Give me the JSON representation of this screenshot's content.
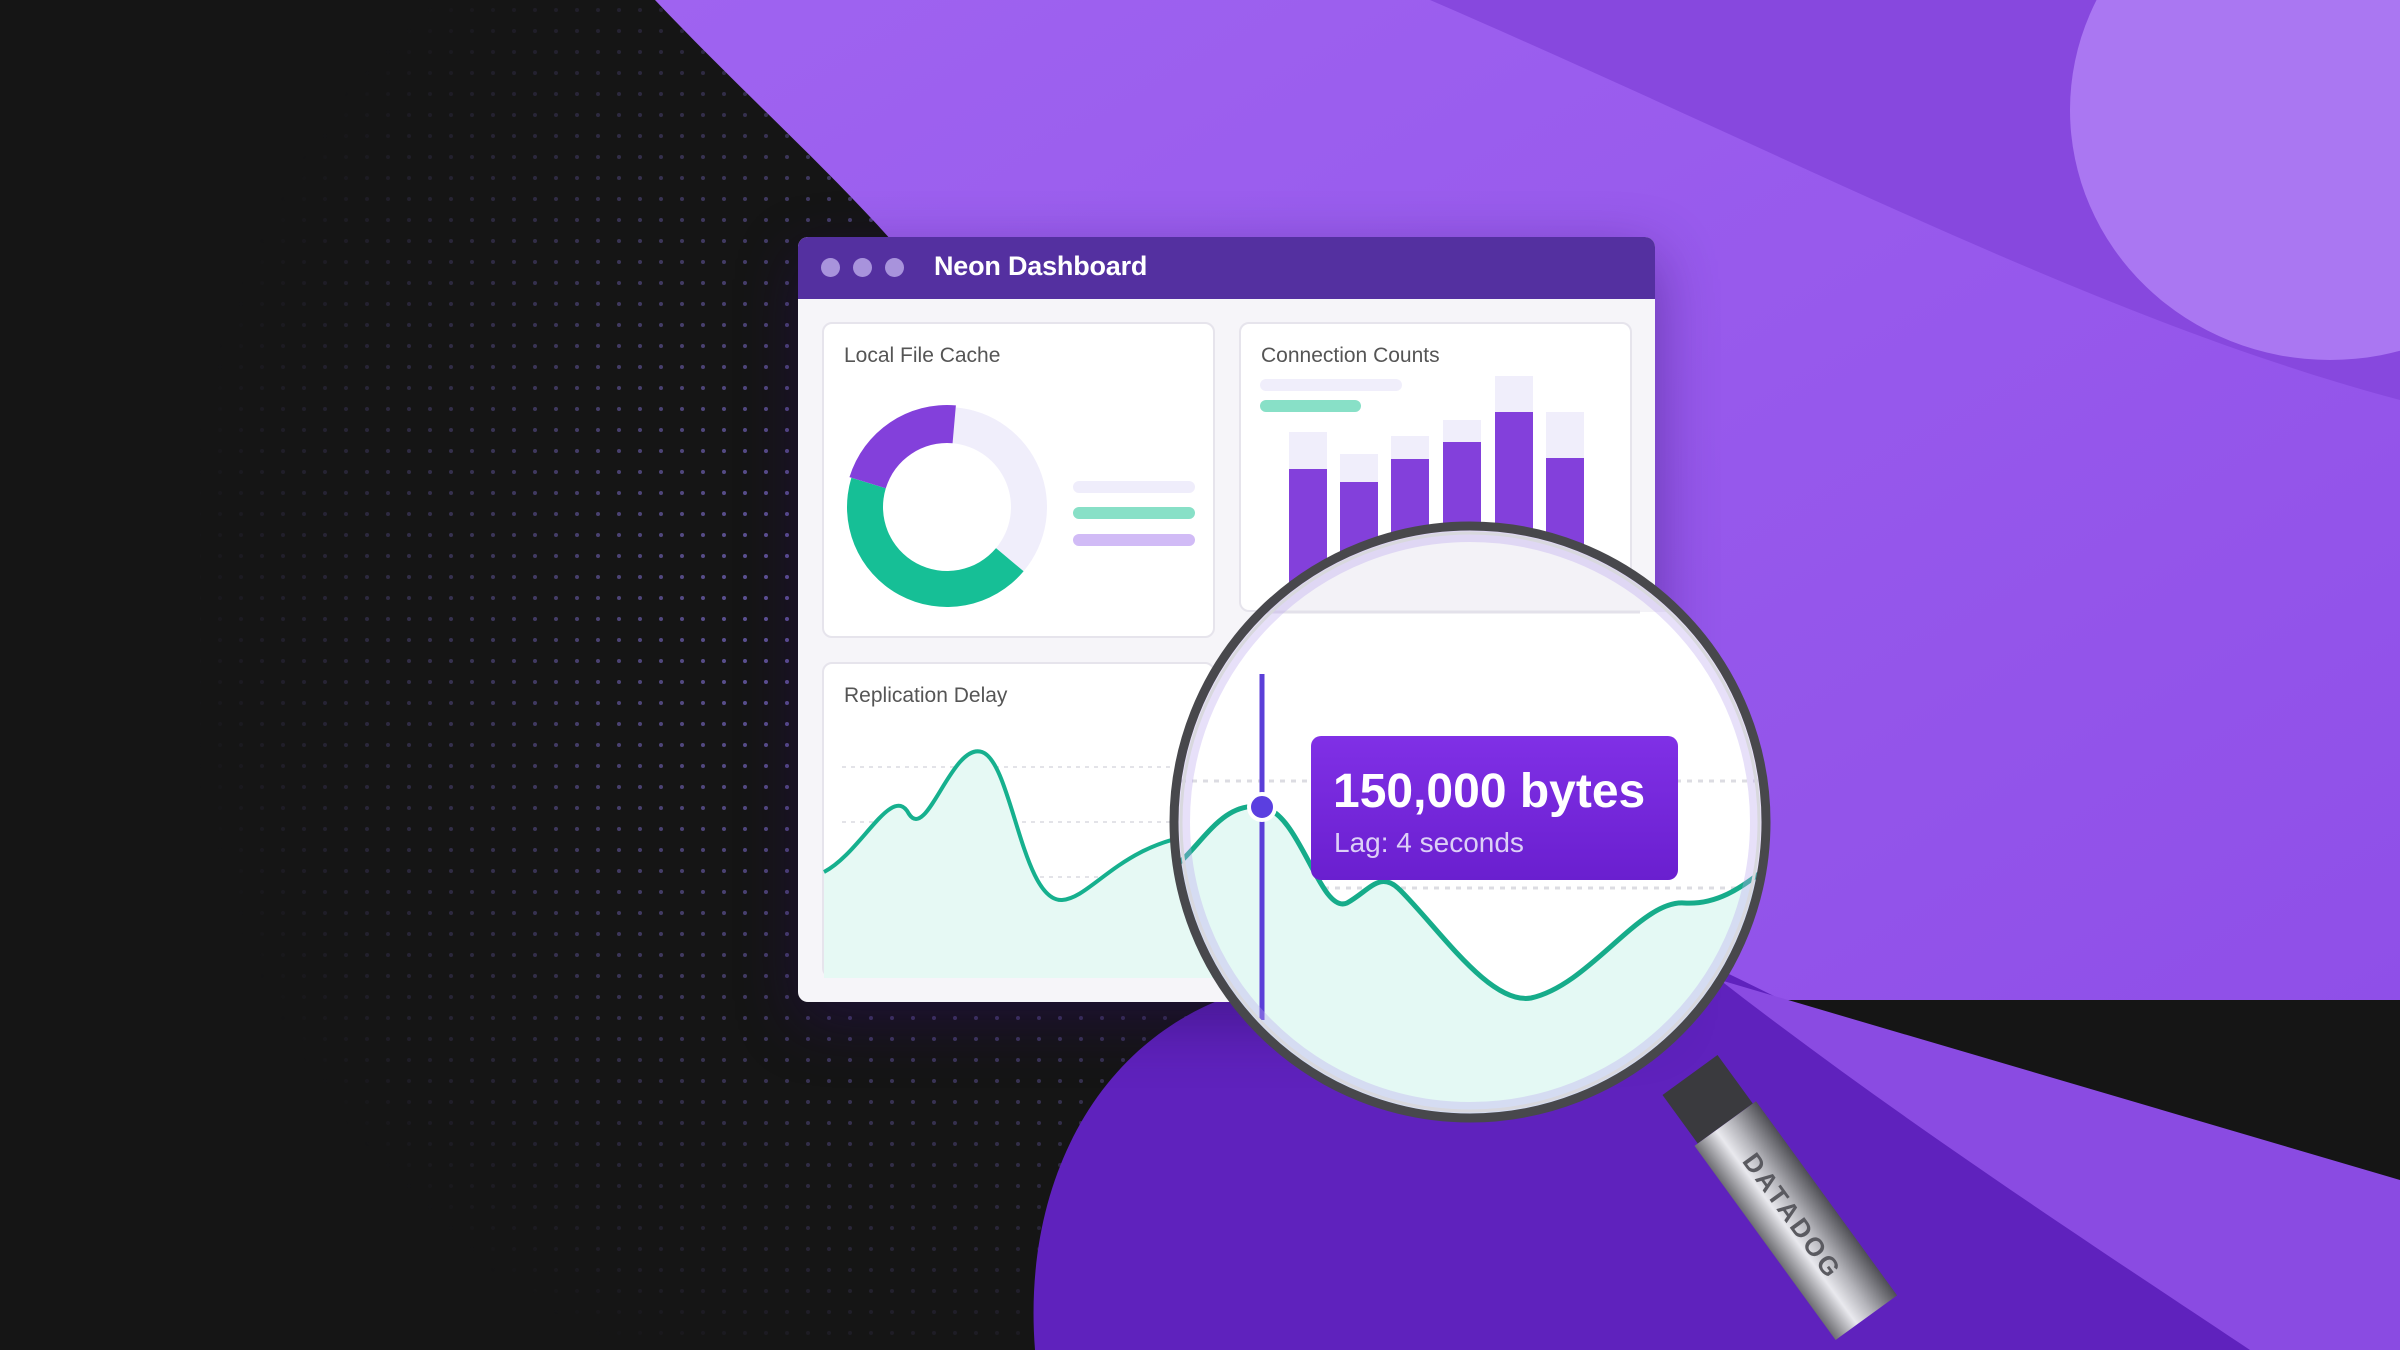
{
  "window": {
    "title": "Neon Dashboard",
    "controls": [
      "close",
      "minimize",
      "maximize"
    ]
  },
  "cards": {
    "local_file_cache": {
      "title": "Local File Cache"
    },
    "connection_counts": {
      "title": "Connection Counts"
    },
    "replication_delay": {
      "title": "Replication Delay"
    }
  },
  "tooltip": {
    "value": "150,000 bytes",
    "detail": "Lag: 4 seconds"
  },
  "magnifier": {
    "brand": "DATADOG"
  },
  "colors": {
    "accent_purple": "#8340db",
    "titlebar": "#5430a0",
    "teal": "#16bf96",
    "tooltip": "#7329dc",
    "background_dark": "#151515"
  }
}
